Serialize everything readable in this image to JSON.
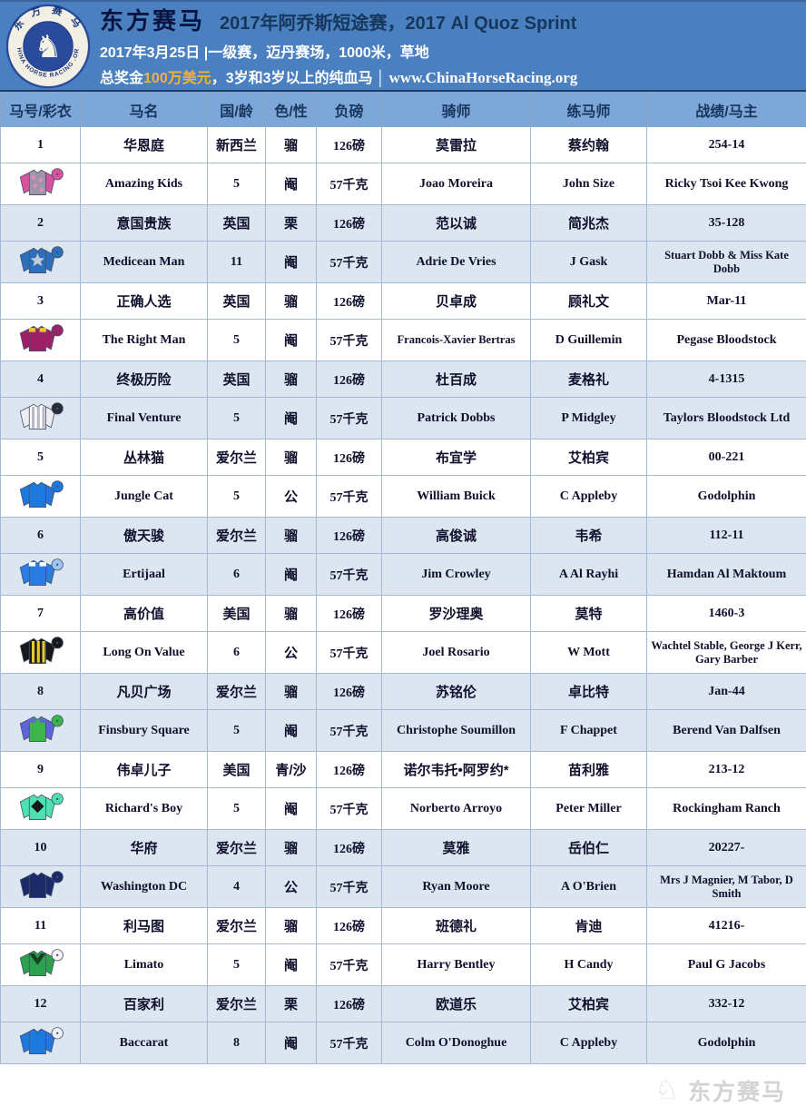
{
  "banner": {
    "brand": "东方赛马",
    "title": "2017年阿乔斯短途赛，2017 Al Quoz Sprint",
    "subtitle": "2017年3月25日 |一级赛，迈丹赛场，1000米，草地",
    "prize_prefix": "总奖金",
    "prize_amount": "100万美元",
    "prize_suffix": "，3岁和3岁以上的纯血马",
    "website": "www.ChinaHorseRacing.org",
    "logo_top": "东 方 赛 马",
    "logo_bottom": "CHINA HORSE RACING .ORG",
    "colors": {
      "banner_bg": "#4a80c0",
      "amount": "#f7b233",
      "title_navy": "#16365c"
    }
  },
  "table": {
    "headers": [
      "马号/彩衣",
      "马名",
      "国/龄",
      "色/性",
      "负磅",
      "骑师",
      "练马师",
      "战绩/马主"
    ],
    "colors": {
      "header_bg": "#7da7d8",
      "stripe_blue": "#dce6f1",
      "border": "#a4b9d6"
    },
    "horses": [
      {
        "number": "1",
        "cn_name": "华恩庭",
        "country": "新西兰",
        "coat": "骝",
        "weight_cn": "126磅",
        "jockey_cn": "莫雷拉",
        "trainer_cn": "蔡约翰",
        "record": "254-14",
        "en_name": "Amazing Kids",
        "age": "5",
        "sex": "阉",
        "weight_en": "57千克",
        "jockey_en": "Joao Moreira",
        "trainer_en": "John Size",
        "owner": "Ricky Tsoi Kee Kwong",
        "silks": {
          "body": "#9d96a8",
          "sleeves": "#d6549e",
          "cap": "#d6549e",
          "accent": "spots",
          "accent_color": "#ee85c4"
        }
      },
      {
        "number": "2",
        "cn_name": "意国贵族",
        "country": "英国",
        "coat": "栗",
        "weight_cn": "126磅",
        "jockey_cn": "范以诚",
        "trainer_cn": "简兆杰",
        "record": "35-128",
        "en_name": "Medicean Man",
        "age": "11",
        "sex": "阉",
        "weight_en": "57千克",
        "jockey_en": "Adrie De Vries",
        "trainer_en": "J Gask",
        "owner": "Stuart Dobb & Miss Kate Dobb",
        "silks": {
          "body": "#2c6fba",
          "sleeves": "#2c6fba",
          "cap": "#2c6fba",
          "accent": "star",
          "accent_color": "#c2cbd8"
        }
      },
      {
        "number": "3",
        "cn_name": "正确人选",
        "country": "英国",
        "coat": "骝",
        "weight_cn": "126磅",
        "jockey_cn": "贝卓成",
        "trainer_cn": "顾礼文",
        "record": "Mar-11",
        "en_name": "The Right Man",
        "age": "5",
        "sex": "阉",
        "weight_en": "57千克",
        "jockey_en": "Francois-Xavier Bertras",
        "trainer_en": "D Guillemin",
        "owner": "Pegase Bloodstock",
        "silks": {
          "body": "#9c2166",
          "sleeves": "#9c2166",
          "cap": "#9c2166",
          "accent": "epaulettes",
          "accent_color": "#e8c832"
        }
      },
      {
        "number": "4",
        "cn_name": "终极历险",
        "country": "英国",
        "coat": "骝",
        "weight_cn": "126磅",
        "jockey_cn": "杜百成",
        "trainer_cn": "麦格礼",
        "record": "4-1315",
        "en_name": "Final Venture",
        "age": "5",
        "sex": "阉",
        "weight_en": "57千克",
        "jockey_en": "Patrick Dobbs",
        "trainer_en": "P Midgley",
        "owner": "Taylors Bloodstock Ltd",
        "silks": {
          "body": "#ffffff",
          "sleeves": "#ececf2",
          "cap": "#2b2b38",
          "accent": "stripes",
          "accent_color": "#b9b9c6"
        }
      },
      {
        "number": "5",
        "cn_name": "丛林猫",
        "country": "爱尔兰",
        "coat": "骝",
        "weight_cn": "126磅",
        "jockey_cn": "布宜学",
        "trainer_cn": "艾柏宾",
        "record": "00-221",
        "en_name": "Jungle Cat",
        "age": "5",
        "sex": "公",
        "weight_en": "57千克",
        "jockey_en": "William Buick",
        "trainer_en": "C Appleby",
        "owner": "Godolphin",
        "silks": {
          "body": "#1e79dd",
          "sleeves": "#1e79dd",
          "cap": "#1e79dd",
          "accent": "none",
          "accent_color": ""
        }
      },
      {
        "number": "6",
        "cn_name": "傲天骏",
        "country": "爱尔兰",
        "coat": "骝",
        "weight_cn": "126磅",
        "jockey_cn": "高俊诚",
        "trainer_cn": "韦希",
        "record": "112-11",
        "en_name": "Ertijaal",
        "age": "6",
        "sex": "阉",
        "weight_en": "57千克",
        "jockey_en": "Jim Crowley",
        "trainer_en": "A Al Rayhi",
        "owner": "Hamdan Al Maktoum",
        "silks": {
          "body": "#2a7ce2",
          "sleeves": "#2a7ce2",
          "cap": "#9fc4ee",
          "accent": "epaulettes",
          "accent_color": "#ffffff"
        }
      },
      {
        "number": "7",
        "cn_name": "高价值",
        "country": "美国",
        "coat": "骝",
        "weight_cn": "126磅",
        "jockey_cn": "罗沙理奥",
        "trainer_cn": "莫特",
        "record": "1460-3",
        "en_name": "Long On Value",
        "age": "6",
        "sex": "公",
        "weight_en": "57千克",
        "jockey_en": "Joel Rosario",
        "trainer_en": "W Mott",
        "owner": "Wachtel Stable, George J Kerr, Gary Barber",
        "silks": {
          "body": "#17171c",
          "sleeves": "#17171c",
          "cap": "#17171c",
          "accent": "stripes",
          "accent_color": "#e8c832"
        }
      },
      {
        "number": "8",
        "cn_name": "凡贝广场",
        "country": "爱尔兰",
        "coat": "骝",
        "weight_cn": "126磅",
        "jockey_cn": "苏铭伦",
        "trainer_cn": "卓比特",
        "record": "Jan-44",
        "en_name": "Finsbury Square",
        "age": "5",
        "sex": "阉",
        "weight_en": "57千克",
        "jockey_en": "Christophe Soumillon",
        "trainer_en": "F Chappet",
        "owner": "Berend Van Dalfsen",
        "silks": {
          "body": "#3cb54d",
          "sleeves": "#5f63d8",
          "cap": "#3cb54d",
          "accent": "epaulettes",
          "accent_color": "#5f63d8"
        }
      },
      {
        "number": "9",
        "cn_name": "伟卓儿子",
        "country": "美国",
        "coat": "青/沙",
        "weight_cn": "126磅",
        "jockey_cn": "诺尔韦托•阿罗约*",
        "trainer_cn": "苗利雅",
        "record": "213-12",
        "en_name": "Richard's Boy",
        "age": "5",
        "sex": "阉",
        "weight_en": "57千克",
        "jockey_en": "Norberto Arroyo",
        "trainer_en": "Peter Miller",
        "owner": "Rockingham Ranch",
        "silks": {
          "body": "#4fe0b2",
          "sleeves": "#4fe0b2",
          "cap": "#4fe0b2",
          "accent": "diamond",
          "accent_color": "#14181c"
        }
      },
      {
        "number": "10",
        "cn_name": "华府",
        "country": "爱尔兰",
        "coat": "骝",
        "weight_cn": "126磅",
        "jockey_cn": "莫雅",
        "trainer_cn": "岳伯仁",
        "record": "20227-",
        "en_name": "Washington DC",
        "age": "4",
        "sex": "公",
        "weight_en": "57千克",
        "jockey_en": "Ryan Moore",
        "trainer_en": "A O'Brien",
        "owner": "Mrs J Magnier, M Tabor, D Smith",
        "silks": {
          "body": "#1c2a68",
          "sleeves": "#1c2a68",
          "cap": "#1c2a68",
          "accent": "none",
          "accent_color": ""
        }
      },
      {
        "number": "11",
        "cn_name": "利马图",
        "country": "爱尔兰",
        "coat": "骝",
        "weight_cn": "126磅",
        "jockey_cn": "班德礼",
        "trainer_cn": "肯迪",
        "record": "41216-",
        "en_name": "Limato",
        "age": "5",
        "sex": "阉",
        "weight_en": "57千克",
        "jockey_en": "Harry Bentley",
        "trainer_en": "H Candy",
        "owner": "Paul G Jacobs",
        "silks": {
          "body": "#2ba04d",
          "sleeves": "#2ba04d",
          "cap": "#f2f2f2",
          "accent": "chevron",
          "accent_color": "#173f22"
        }
      },
      {
        "number": "12",
        "cn_name": "百家利",
        "country": "爱尔兰",
        "coat": "栗",
        "weight_cn": "126磅",
        "jockey_cn": "欧道乐",
        "trainer_cn": "艾柏宾",
        "record": "332-12",
        "en_name": "Baccarat",
        "age": "8",
        "sex": "阉",
        "weight_en": "57千克",
        "jockey_en": "Colm O'Donoghue",
        "trainer_en": "C Appleby",
        "owner": "Godolphin",
        "silks": {
          "body": "#1e79dd",
          "sleeves": "#1e79dd",
          "cap": "#eef2f8",
          "accent": "none",
          "accent_color": ""
        }
      }
    ]
  },
  "watermark": {
    "text": "东方赛马"
  }
}
